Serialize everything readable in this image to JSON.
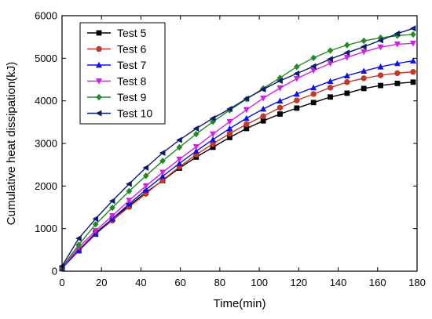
{
  "chart_data": {
    "type": "line",
    "xlabel": "Time(min)",
    "ylabel": "Cumulative heat dissipation(kJ)",
    "xlim": [
      0,
      180
    ],
    "ylim": [
      0,
      6000
    ],
    "x_ticks": [
      "0",
      "20",
      "40",
      "60",
      "80",
      "100",
      "120",
      "140",
      "160",
      "180"
    ],
    "y_ticks": [
      "0",
      "1000",
      "2000",
      "3000",
      "4000",
      "5000",
      "6000"
    ],
    "grid": false,
    "legend_position": "top-left",
    "x": [
      0,
      8.5,
      17,
      25.5,
      34,
      42.5,
      51,
      59.5,
      68,
      76.5,
      85,
      93.5,
      102,
      110.5,
      119,
      127.5,
      136,
      144.5,
      153,
      161.5,
      170,
      178
    ],
    "series": [
      {
        "name": "Test 5",
        "color": "#000000",
        "marker": "square",
        "values": [
          60,
          500,
          900,
          1230,
          1540,
          1850,
          2130,
          2420,
          2680,
          2910,
          3140,
          3350,
          3530,
          3690,
          3830,
          3960,
          4090,
          4180,
          4290,
          4360,
          4410,
          4440
        ]
      },
      {
        "name": "Test 6",
        "color": "#c0392b",
        "marker": "circle",
        "values": [
          60,
          510,
          880,
          1190,
          1510,
          1820,
          2140,
          2450,
          2740,
          2990,
          3230,
          3450,
          3640,
          3840,
          4010,
          4160,
          4310,
          4440,
          4530,
          4600,
          4650,
          4680
        ]
      },
      {
        "name": "Test 7",
        "color": "#1010e0",
        "marker": "triangle-up",
        "values": [
          70,
          480,
          870,
          1230,
          1580,
          1910,
          2230,
          2530,
          2820,
          3090,
          3350,
          3590,
          3810,
          4000,
          4160,
          4310,
          4460,
          4590,
          4700,
          4800,
          4880,
          4940
        ]
      },
      {
        "name": "Test 8",
        "color": "#d020e0",
        "marker": "triangle-down",
        "values": [
          70,
          560,
          950,
          1300,
          1660,
          2000,
          2320,
          2630,
          2920,
          3220,
          3510,
          3790,
          4060,
          4300,
          4520,
          4710,
          4880,
          5020,
          5150,
          5260,
          5330,
          5350
        ]
      },
      {
        "name": "Test 9",
        "color": "#228B22",
        "marker": "diamond",
        "values": [
          90,
          620,
          1100,
          1490,
          1880,
          2240,
          2590,
          2910,
          3220,
          3510,
          3780,
          4040,
          4290,
          4540,
          4800,
          5010,
          5180,
          5310,
          5410,
          5480,
          5530,
          5560
        ]
      },
      {
        "name": "Test 10",
        "color": "#0d1b6e",
        "marker": "triangle-left",
        "values": [
          120,
          770,
          1230,
          1650,
          2050,
          2430,
          2780,
          3080,
          3350,
          3590,
          3810,
          4050,
          4270,
          4470,
          4640,
          4810,
          4980,
          5130,
          5270,
          5420,
          5580,
          5700
        ]
      }
    ]
  }
}
